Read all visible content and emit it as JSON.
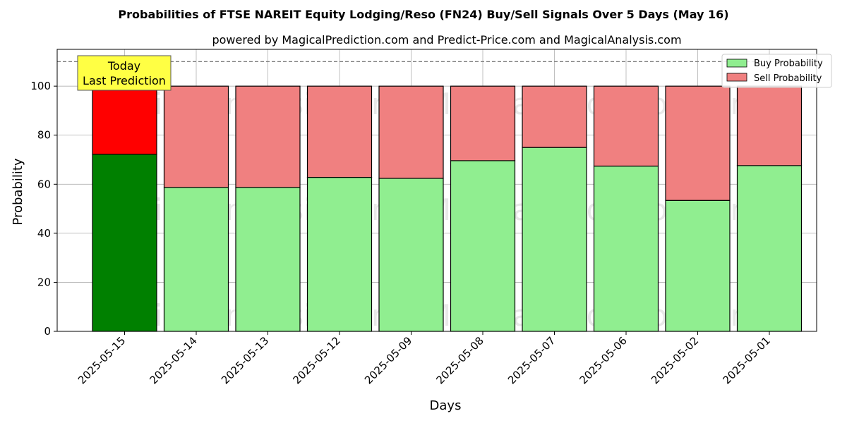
{
  "chart_data": {
    "type": "bar",
    "stacked": true,
    "title": "Probabilities of FTSE NAREIT Equity Lodging/Reso (FN24) Buy/Sell Signals Over 5 Days (May 16)",
    "subtitle": "powered by MagicalPrediction.com and Predict-Price.com and MagicalAnalysis.com",
    "xlabel": "Days",
    "ylabel": "Probability",
    "ylim": [
      0,
      115
    ],
    "yticks": [
      0,
      20,
      40,
      60,
      80,
      100
    ],
    "grid": true,
    "categories": [
      "2025-05-15",
      "2025-05-14",
      "2025-05-13",
      "2025-05-12",
      "2025-05-09",
      "2025-05-08",
      "2025-05-07",
      "2025-05-06",
      "2025-05-02",
      "2025-05-01"
    ],
    "series": [
      {
        "name": "Buy Probability",
        "values": [
          72.2,
          58.7,
          58.7,
          62.8,
          62.4,
          69.6,
          75.0,
          67.4,
          53.4,
          67.6
        ]
      },
      {
        "name": "Sell Probability",
        "values": [
          27.8,
          41.3,
          41.3,
          37.2,
          37.6,
          30.4,
          25.0,
          32.6,
          46.6,
          32.4
        ]
      }
    ],
    "reference_line": 110,
    "legend_position": "top-right",
    "annotation": {
      "line1": "Today",
      "line2": "Last Prediction",
      "category": "2025-05-15"
    },
    "watermarks": [
      "MagicalAnalysis.com",
      "MagicalPrediction.com"
    ],
    "colors": {
      "buy": "#90ee90",
      "sell": "#f08080",
      "today_buy": "#008000",
      "today_sell": "#ff0000",
      "annotation_bg": "#ffff44",
      "grid": "#b0b0b0"
    }
  }
}
